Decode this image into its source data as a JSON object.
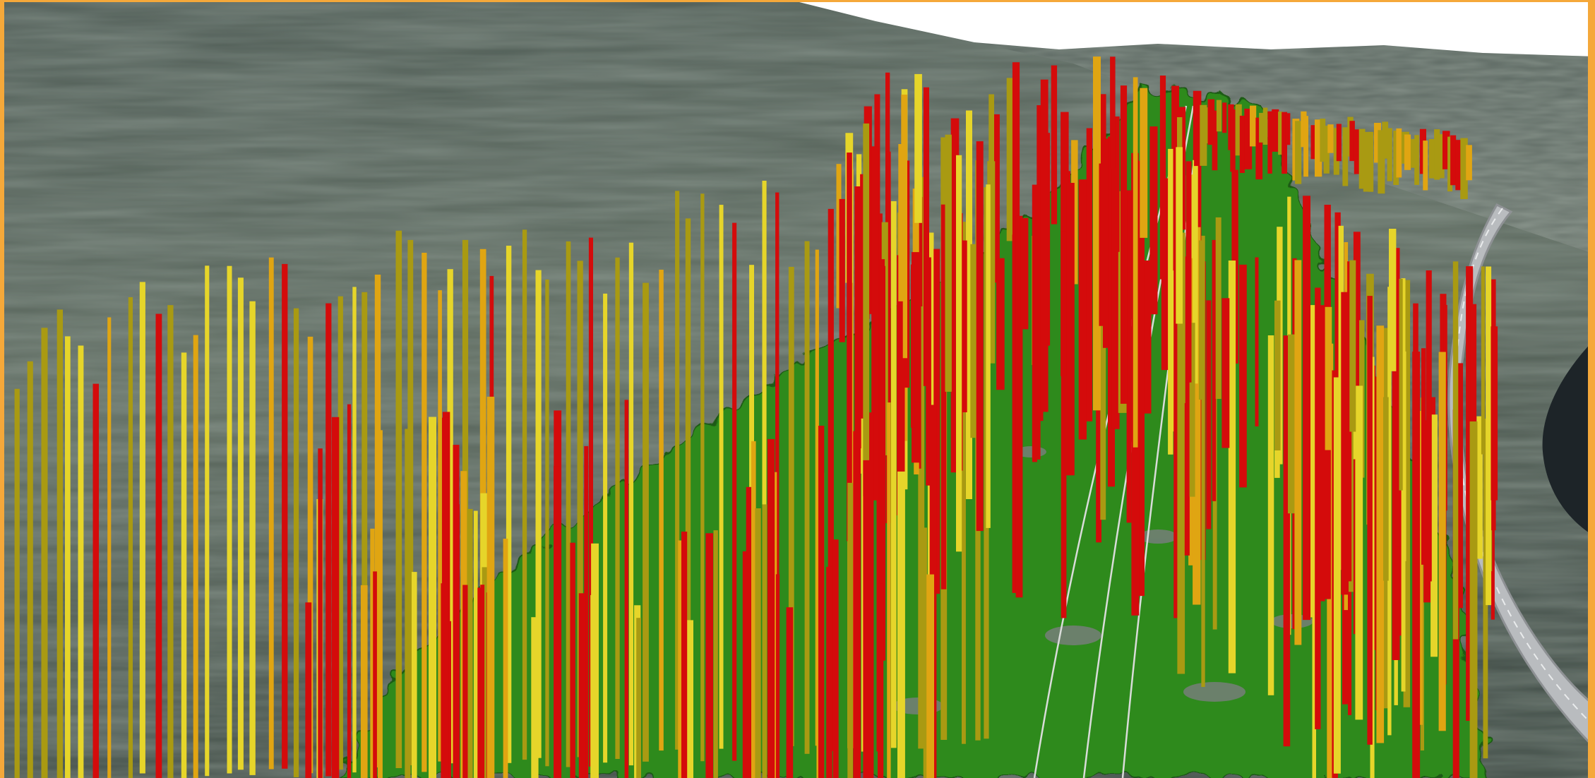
{
  "view": {
    "kind": "3d-terrain-visualization",
    "sky_color": "#ffffff",
    "frame_color": "#f5a83a",
    "terrain_colors": {
      "forest_dark": "#3e4a45",
      "forest_mid": "#5b6a5e",
      "forest_light": "#7d8a7c",
      "corridor_vegetation": "#2f8a1a",
      "corridor_outline": "#1f5a12",
      "exposed_ground": "#7a7d80",
      "road": "#b9bcbf",
      "water": "#1d2428",
      "power_line": "#d9dcd9"
    },
    "marker_colors": {
      "high": "#d40b0b",
      "medium": "#e0a512",
      "low_bright": "#e6d52a",
      "low_olive": "#a99a12"
    },
    "marker_classes": [
      "high",
      "medium",
      "low_bright",
      "low_olive"
    ]
  }
}
